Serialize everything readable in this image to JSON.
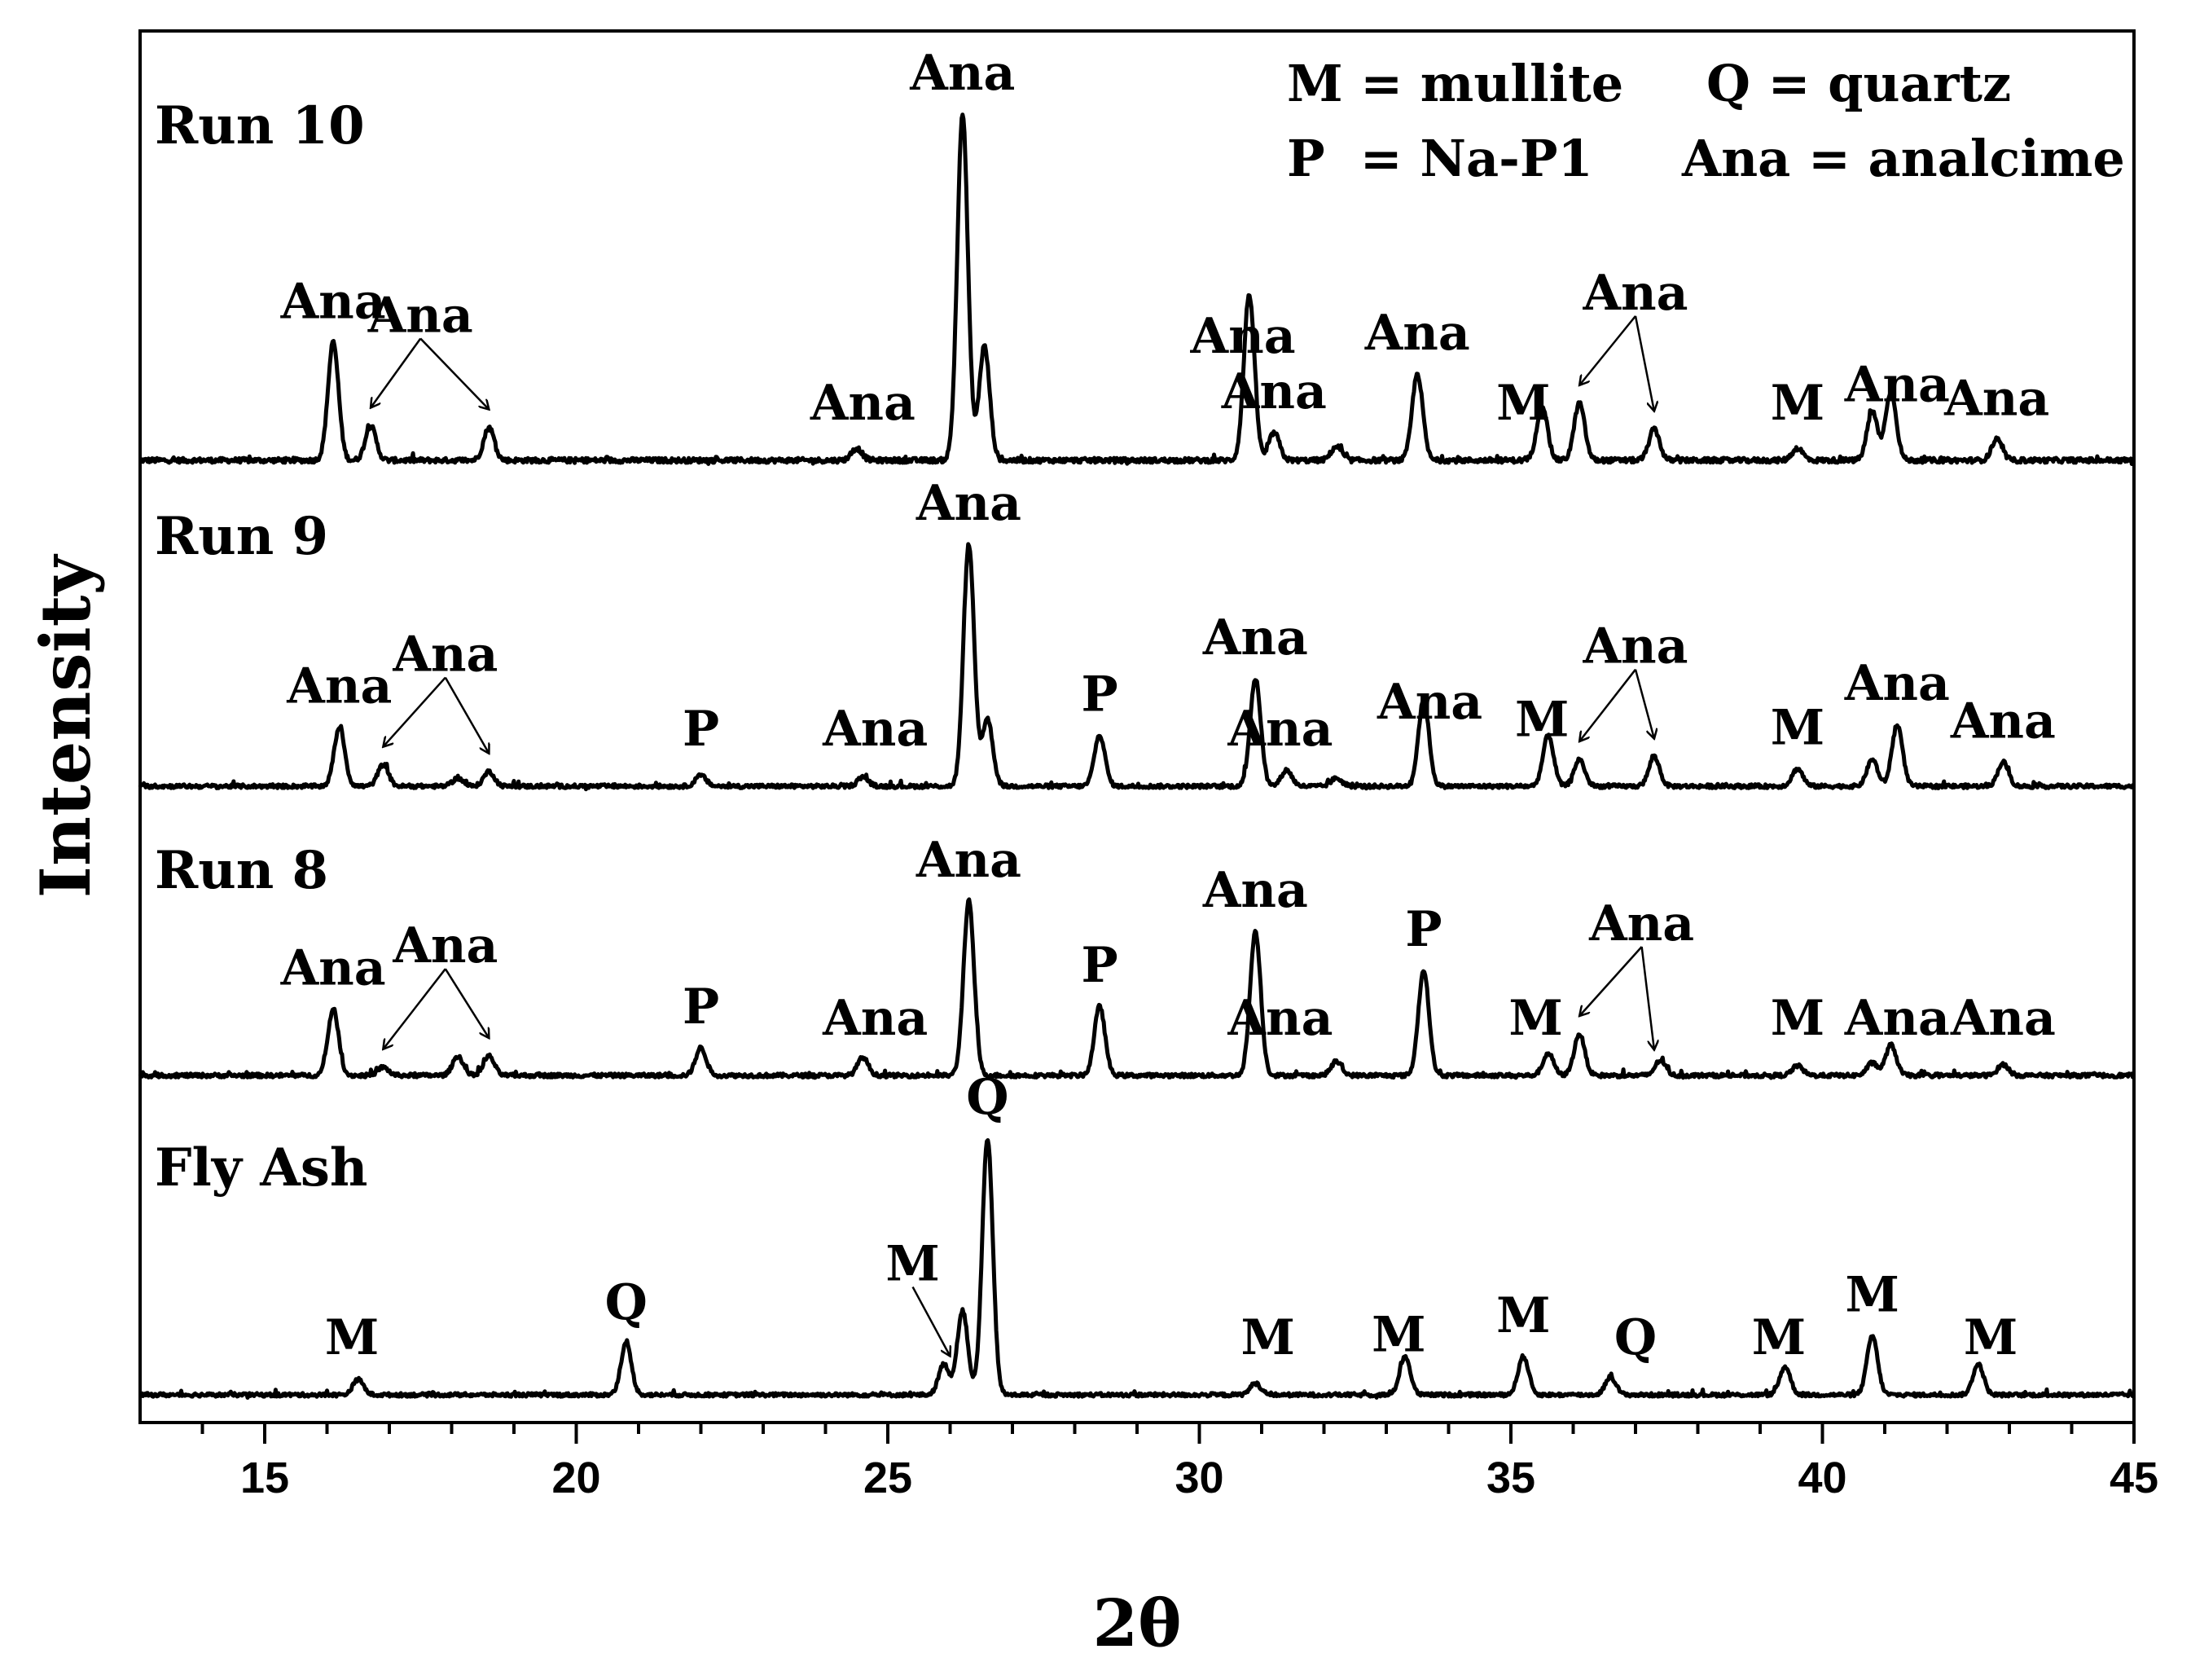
{
  "chart_data": {
    "type": "line",
    "title": "",
    "xlabel": "2θ",
    "ylabel": "Intensity",
    "xlim": [
      13,
      45
    ],
    "xticks": [
      15,
      20,
      25,
      30,
      35,
      40,
      45
    ],
    "grid": false,
    "legend_position": "top-right",
    "legend": [
      [
        "M = mullite",
        "Q = quartz"
      ],
      [
        "P  = Na-P1",
        "Ana = analcime"
      ]
    ],
    "series": [
      {
        "name": "Run 10",
        "baseline": 0,
        "peaks": [
          [
            16.1,
            340
          ],
          [
            16.7,
            100
          ],
          [
            18.6,
            95
          ],
          [
            24.5,
            35
          ],
          [
            26.2,
            1000
          ],
          [
            26.55,
            330
          ],
          [
            30.8,
            480
          ],
          [
            31.2,
            80
          ],
          [
            32.2,
            40
          ],
          [
            33.5,
            250
          ],
          [
            35.5,
            160
          ],
          [
            36.1,
            165
          ],
          [
            37.3,
            90
          ],
          [
            39.6,
            35
          ],
          [
            40.8,
            140
          ],
          [
            41.1,
            200
          ],
          [
            42.8,
            60
          ]
        ],
        "annotations": [
          {
            "text": "Ana",
            "x": 16.1
          },
          {
            "text": "Ana",
            "x": 17.5,
            "arrows_to": [
              16.7,
              18.6
            ]
          },
          {
            "text": "Ana",
            "x": 24.6
          },
          {
            "text": "Ana",
            "x": 26.2
          },
          {
            "text": "Ana",
            "x": 30.7
          },
          {
            "text": "Ana",
            "x": 31.2
          },
          {
            "text": "Ana",
            "x": 33.5
          },
          {
            "text": "M",
            "x": 35.2
          },
          {
            "text": "Ana",
            "x": 37.0,
            "arrows_to": [
              36.1,
              37.3
            ]
          },
          {
            "text": "M",
            "x": 39.6
          },
          {
            "text": "Ana",
            "x": 41.2
          },
          {
            "text": "Ana",
            "x": 42.8
          }
        ]
      },
      {
        "name": "Run 9",
        "baseline": 0,
        "peaks": [
          [
            16.2,
            220
          ],
          [
            16.9,
            80
          ],
          [
            18.1,
            30
          ],
          [
            18.6,
            55
          ],
          [
            22.0,
            40
          ],
          [
            24.6,
            35
          ],
          [
            26.3,
            900
          ],
          [
            26.6,
            250
          ],
          [
            28.4,
            190
          ],
          [
            30.9,
            400
          ],
          [
            31.4,
            60
          ],
          [
            32.2,
            30
          ],
          [
            33.6,
            320
          ],
          [
            35.6,
            190
          ],
          [
            36.1,
            100
          ],
          [
            37.3,
            110
          ],
          [
            39.6,
            65
          ],
          [
            40.8,
            100
          ],
          [
            41.2,
            230
          ],
          [
            42.9,
            90
          ]
        ],
        "annotations": [
          {
            "text": "Ana",
            "x": 16.2
          },
          {
            "text": "Ana",
            "x": 17.9,
            "arrows_to": [
              16.9,
              18.6
            ]
          },
          {
            "text": "P",
            "x": 22.0
          },
          {
            "text": "Ana",
            "x": 24.8
          },
          {
            "text": "Ana",
            "x": 26.3
          },
          {
            "text": "P",
            "x": 28.4
          },
          {
            "text": "Ana",
            "x": 30.9
          },
          {
            "text": "Ana",
            "x": 31.3
          },
          {
            "text": "Ana",
            "x": 33.7
          },
          {
            "text": "M",
            "x": 35.5
          },
          {
            "text": "Ana",
            "x": 37.0,
            "arrows_to": [
              36.1,
              37.3
            ]
          },
          {
            "text": "M",
            "x": 39.6
          },
          {
            "text": "Ana",
            "x": 41.2
          },
          {
            "text": "Ana",
            "x": 42.9
          }
        ]
      },
      {
        "name": "Run 8",
        "baseline": 0,
        "peaks": [
          [
            16.1,
            240
          ],
          [
            16.9,
            30
          ],
          [
            18.1,
            70
          ],
          [
            18.6,
            70
          ],
          [
            22.0,
            100
          ],
          [
            24.6,
            65
          ],
          [
            26.3,
            630
          ],
          [
            28.4,
            250
          ],
          [
            30.9,
            520
          ],
          [
            32.2,
            50
          ],
          [
            33.6,
            380
          ],
          [
            35.6,
            80
          ],
          [
            36.1,
            150
          ],
          [
            37.4,
            55
          ],
          [
            39.6,
            35
          ],
          [
            40.8,
            45
          ],
          [
            41.1,
            110
          ],
          [
            42.9,
            40
          ]
        ],
        "annotations": [
          {
            "text": "Ana",
            "x": 16.1
          },
          {
            "text": "Ana",
            "x": 17.9,
            "arrows_to": [
              16.9,
              18.6
            ]
          },
          {
            "text": "P",
            "x": 22.0
          },
          {
            "text": "Ana",
            "x": 24.8
          },
          {
            "text": "Ana",
            "x": 26.3
          },
          {
            "text": "P",
            "x": 28.4
          },
          {
            "text": "Ana",
            "x": 30.9
          },
          {
            "text": "Ana",
            "x": 31.3
          },
          {
            "text": "P",
            "x": 33.6
          },
          {
            "text": "M",
            "x": 35.4
          },
          {
            "text": "Ana",
            "x": 37.1,
            "arrows_to": [
              36.1,
              37.3
            ]
          },
          {
            "text": "M",
            "x": 39.6
          },
          {
            "text": "Ana",
            "x": 41.2
          },
          {
            "text": "Ana",
            "x": 42.9
          }
        ]
      },
      {
        "name": "Fly Ash",
        "baseline": 0,
        "peaks": [
          [
            16.5,
            60
          ],
          [
            20.8,
            200
          ],
          [
            25.9,
            120
          ],
          [
            26.2,
            330
          ],
          [
            26.6,
            1000
          ],
          [
            30.9,
            45
          ],
          [
            33.3,
            150
          ],
          [
            35.2,
            150
          ],
          [
            36.6,
            70
          ],
          [
            39.4,
            110
          ],
          [
            40.8,
            230
          ],
          [
            42.5,
            120
          ]
        ],
        "annotations": [
          {
            "text": "M",
            "x": 16.4
          },
          {
            "text": "Q",
            "x": 20.8
          },
          {
            "text": "M",
            "x": 25.4,
            "arrows_to": [
              26.0
            ]
          },
          {
            "text": "Q",
            "x": 26.6
          },
          {
            "text": "M",
            "x": 31.1
          },
          {
            "text": "M",
            "x": 33.2
          },
          {
            "text": "M",
            "x": 35.2
          },
          {
            "text": "Q",
            "x": 37.0
          },
          {
            "text": "M",
            "x": 39.3
          },
          {
            "text": "M",
            "x": 40.8
          },
          {
            "text": "M",
            "x": 42.7
          }
        ]
      }
    ]
  }
}
